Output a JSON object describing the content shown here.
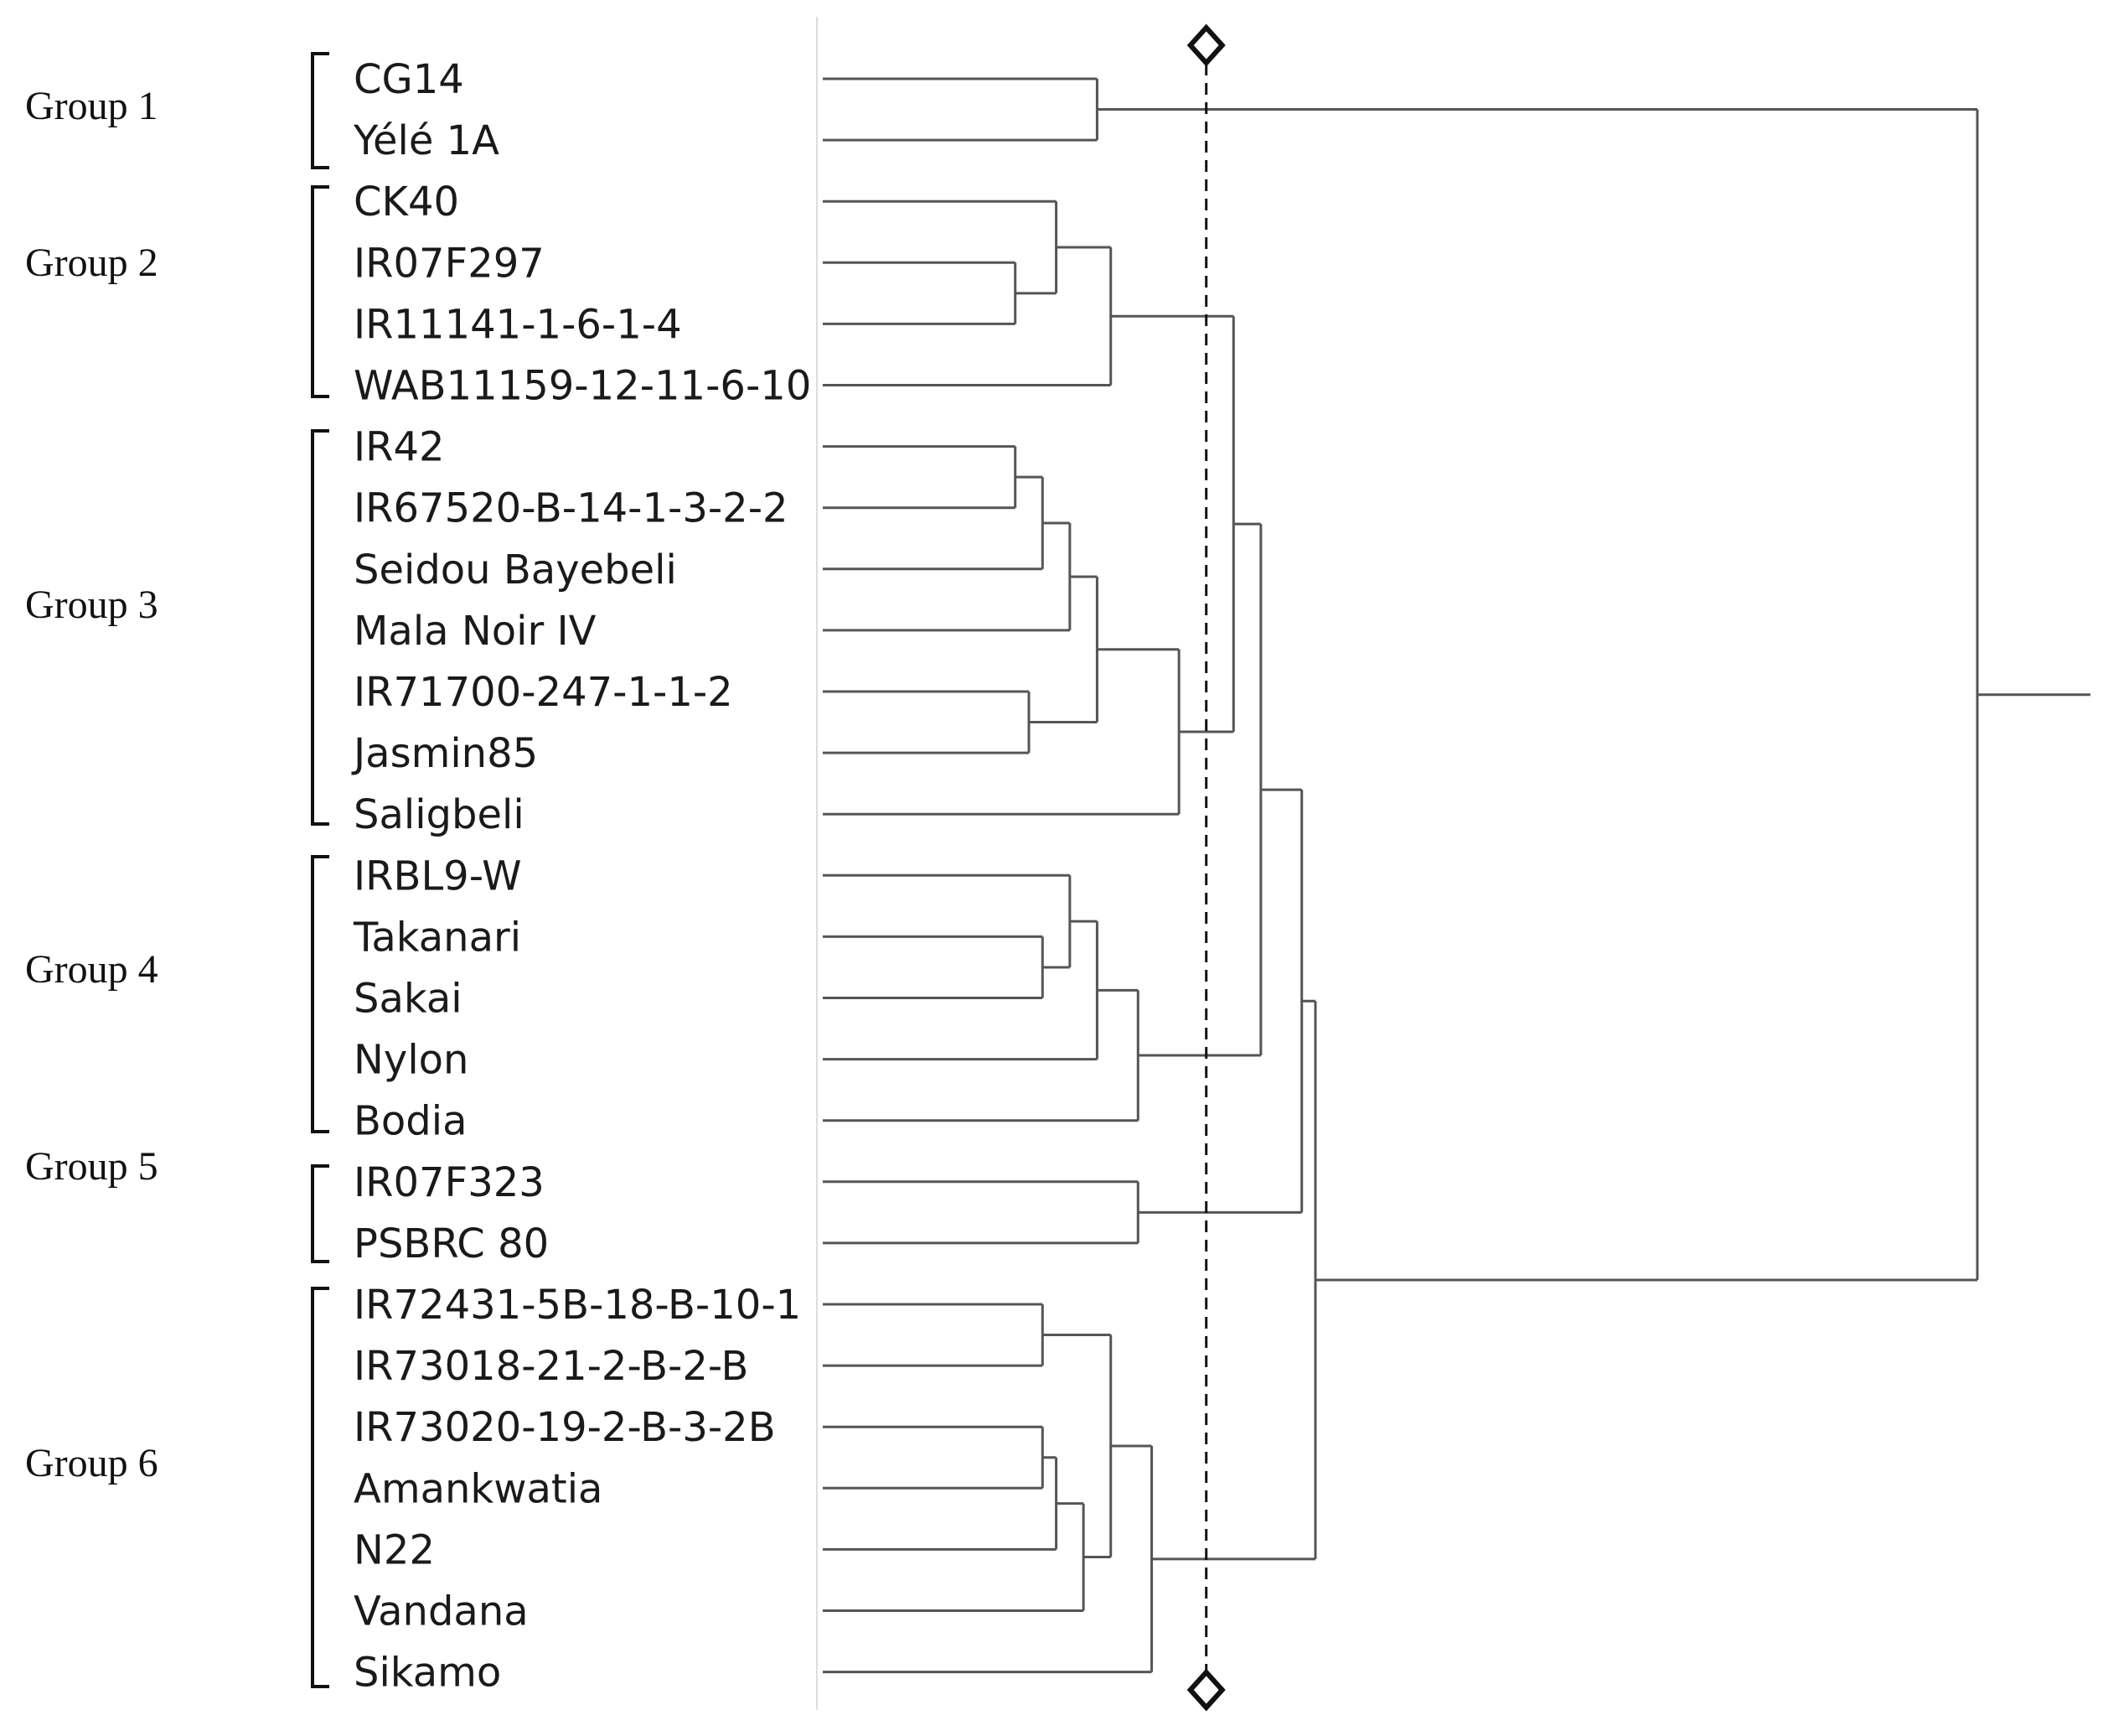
{
  "figure": {
    "type": "dendrogram",
    "groups": [
      {
        "label": "Group 1",
        "members": [
          "CG14",
          "Yélé 1A"
        ]
      },
      {
        "label": "Group 2",
        "members": [
          "CK40",
          "IR07F297",
          "IR11141-1-6-1-4",
          "WAB11159-12-11-6-10"
        ]
      },
      {
        "label": "Group 3",
        "members": [
          "IR42",
          "IR67520-B-14-1-3-2-2",
          "Seidou Bayebeli",
          "Mala Noir IV",
          "IR71700-247-1-1-2",
          "Jasmin85",
          "Saligbeli"
        ]
      },
      {
        "label": "Group 4",
        "members": [
          "IRBL9-W",
          "Takanari",
          "Sakai",
          "Nylon",
          "Bodia"
        ]
      },
      {
        "label": "Group 5",
        "members": [
          "IR07F323",
          "PSBRC 80"
        ]
      },
      {
        "label": "Group 6",
        "members": [
          "IR72431-5B-18-B-10-1",
          "IR73018-21-2-B-2-B",
          "IR73020-19-2-B-3-2B",
          "Amankwatia",
          "N22",
          "Vandana",
          "Sikamo"
        ]
      }
    ],
    "leaves": [
      "CG14",
      "Yélé 1A",
      "CK40",
      "IR07F297",
      "IR11141-1-6-1-4",
      "WAB11159-12-11-6-10",
      "IR42",
      "IR67520-B-14-1-3-2-2",
      "Seidou Bayebeli",
      "Mala Noir IV",
      "IR71700-247-1-1-2",
      "Jasmin85",
      "Saligbeli",
      "IRBL9-W",
      "Takanari",
      "Sakai",
      "Nylon",
      "Bodia",
      "IR07F323",
      "PSBRC 80",
      "IR72431-5B-18-B-10-1",
      "IR73018-21-2-B-2-B",
      "IR73020-19-2-B-3-2B",
      "Amankwatia",
      "N22",
      "Vandana",
      "Sikamo"
    ],
    "merge_heights_note": "relative dissimilarity (0 = leaves, 1 = root)",
    "merges": [
      {
        "a": "CG14",
        "b": "Yélé 1A",
        "h": 0.19
      },
      {
        "a": "IR07F297",
        "b": "IR11141-1-6-1-4",
        "h": 0.13
      },
      {
        "a": "CK40",
        "b": "IR07F297+IR11141-1-6-1-4",
        "h": 0.16
      },
      {
        "a": "G2a",
        "b": "WAB11159-12-11-6-10",
        "h": 0.2
      },
      {
        "a": "IR42",
        "b": "IR67520-B-14-1-3-2-2",
        "h": 0.13
      },
      {
        "a": "G3a",
        "b": "Seidou Bayebeli",
        "h": 0.15
      },
      {
        "a": "G3b",
        "b": "Mala Noir IV",
        "h": 0.17
      },
      {
        "a": "IR71700-247-1-1-2",
        "b": "Jasmin85",
        "h": 0.14
      },
      {
        "a": "G3c",
        "b": "G3d",
        "h": 0.19
      },
      {
        "a": "G3e",
        "b": "Saligbeli",
        "h": 0.25
      },
      {
        "a": "Group 2",
        "b": "Group 3",
        "h": 0.29
      },
      {
        "a": "Takanari",
        "b": "Sakai",
        "h": 0.15
      },
      {
        "a": "IRBL9-W",
        "b": "G4a",
        "h": 0.17
      },
      {
        "a": "G4b",
        "b": "Nylon",
        "h": 0.19
      },
      {
        "a": "G4c",
        "b": "Bodia",
        "h": 0.22
      },
      {
        "a": "Group 2+3",
        "b": "Group 4",
        "h": 0.31
      },
      {
        "a": "IR07F323",
        "b": "PSBRC 80",
        "h": 0.22
      },
      {
        "a": "G234",
        "b": "Group 5",
        "h": 0.34
      },
      {
        "a": "IR72431-5B-18-B-10-1",
        "b": "IR73018-21-2-B-2-B",
        "h": 0.15
      },
      {
        "a": "IR73020-19-2-B-3-2B",
        "b": "Amankwatia",
        "h": 0.15
      },
      {
        "a": "G6b",
        "b": "N22",
        "h": 0.16
      },
      {
        "a": "G6c",
        "b": "Vandana",
        "h": 0.18
      },
      {
        "a": "G6a",
        "b": "G6d",
        "h": 0.2
      },
      {
        "a": "G6e",
        "b": "Sikamo",
        "h": 0.23
      },
      {
        "a": "G2345",
        "b": "Group 6",
        "h": 0.35
      },
      {
        "a": "Group 1",
        "b": "G23456",
        "h": 0.85
      }
    ],
    "cut_height": 0.27
  }
}
